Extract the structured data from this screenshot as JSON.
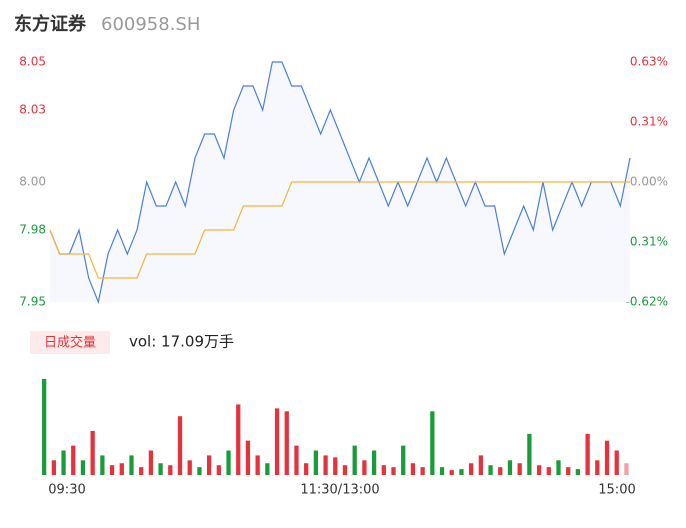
{
  "chart_data": {
    "type": "intraday",
    "title": "东方证券",
    "subtitle": "600958.SH",
    "ylim": [
      7.95,
      8.05
    ],
    "yticks": [
      8.05,
      8.03,
      {
        "value": 8.0,
        "label": "8.00"
      },
      7.98,
      7.95
    ],
    "ytick_colors": [
      "#e5333d",
      "#e5333d",
      "#999999",
      "#1a9c3a",
      "#1a9c3a"
    ],
    "y2lim": [
      -0.625,
      0.625
    ],
    "y2ticks": [
      {
        "value": 0.625,
        "label": "0.63%"
      },
      {
        "value": 0.3125,
        "label": "0.31%"
      },
      {
        "value": 0,
        "label": "0.00%"
      },
      {
        "value": -0.3125,
        "label": "-0.31%"
      },
      {
        "value": -0.625,
        "label": "-0.62%"
      }
    ],
    "y2tick_colors": [
      "#e5333d",
      "#e5333d",
      "#999999",
      "#1a9c3a",
      "#1a9c3a"
    ],
    "x_labels": [
      "09:30",
      "11:30/13:00",
      "15:00"
    ],
    "series": [
      {
        "color": "#4a7fe0",
        "values": [
          7.98,
          7.97,
          7.97,
          7.98,
          7.96,
          7.95,
          7.97,
          7.98,
          7.97,
          7.98,
          8.0,
          7.99,
          7.99,
          8.0,
          7.99,
          8.01,
          8.02,
          8.02,
          8.01,
          8.03,
          8.04,
          8.04,
          8.03,
          8.05,
          8.05,
          8.04,
          8.04,
          8.03,
          8.02,
          8.03,
          8.02,
          8.01,
          8.0,
          8.01,
          8.0,
          7.99,
          8.0,
          7.99,
          8.0,
          8.01,
          8.0,
          8.01,
          8.0,
          7.99,
          8.0,
          7.99,
          7.99,
          7.97,
          7.98,
          7.99,
          7.98,
          8.0,
          7.98,
          7.99,
          8.0,
          7.99,
          8.0,
          8.0,
          8.0,
          7.99,
          8.01
        ]
      },
      {
        "color": "#f5b43c",
        "values": [
          7.98,
          7.97,
          7.97,
          7.97,
          7.97,
          7.96,
          7.96,
          7.96,
          7.96,
          7.96,
          7.97,
          7.97,
          7.97,
          7.97,
          7.97,
          7.97,
          7.98,
          7.98,
          7.98,
          7.98,
          7.99,
          7.99,
          7.99,
          7.99,
          7.99,
          8.0,
          8.0,
          8.0,
          8.0,
          8.0,
          8.0,
          8.0,
          8.0,
          8.0,
          8.0,
          8.0,
          8.0,
          8.0,
          8.0,
          8.0,
          8.0,
          8.0,
          8.0,
          8.0,
          8.0,
          8.0,
          8.0,
          8.0,
          8.0,
          8.0,
          8.0,
          8.0,
          8.0,
          8.0,
          8.0,
          8.0,
          8.0,
          8.0,
          8.0,
          8.0,
          8.0
        ]
      }
    ],
    "volume": {
      "badge": "日成交量",
      "summary": "vol: 17.09万手",
      "ylim": [
        0,
        100
      ],
      "values": [
        98,
        15,
        25,
        30,
        15,
        45,
        20,
        10,
        12,
        20,
        8,
        25,
        12,
        10,
        60,
        15,
        8,
        20,
        10,
        25,
        72,
        35,
        20,
        12,
        68,
        65,
        30,
        12,
        25,
        20,
        18,
        10,
        30,
        15,
        25,
        10,
        8,
        30,
        12,
        8,
        65,
        8,
        5,
        6,
        12,
        20,
        10,
        8,
        15,
        12,
        42,
        10,
        8,
        15,
        8,
        6,
        42,
        15,
        35,
        25,
        12
      ],
      "colors": [
        "#1a9c3a",
        "#e5333d",
        "#1a9c3a",
        "#e5333d",
        "#1a9c3a",
        "#e5333d",
        "#1a9c3a",
        "#e5333d",
        "#e5333d",
        "#1a9c3a",
        "#e5333d",
        "#e5333d",
        "#1a9c3a",
        "#e5333d",
        "#e5333d",
        "#e5333d",
        "#1a9c3a",
        "#e5333d",
        "#e5333d",
        "#1a9c3a",
        "#e5333d",
        "#e5333d",
        "#e5333d",
        "#1a9c3a",
        "#e5333d",
        "#e5333d",
        "#e5333d",
        "#e5333d",
        "#1a9c3a",
        "#e5333d",
        "#e5333d",
        "#e5333d",
        "#1a9c3a",
        "#e5333d",
        "#1a9c3a",
        "#e5333d",
        "#e5333d",
        "#1a9c3a",
        "#e5333d",
        "#e5333d",
        "#1a9c3a",
        "#1a9c3a",
        "#e5333d",
        "#1a9c3a",
        "#e5333d",
        "#e5333d",
        "#1a9c3a",
        "#e5333d",
        "#1a9c3a",
        "#e5333d",
        "#1a9c3a",
        "#e5333d",
        "#e5333d",
        "#1a9c3a",
        "#e5333d",
        "#1a9c3a",
        "#e5333d",
        "#e5333d",
        "#e5333d",
        "#e5333d",
        "#f4a0a0"
      ]
    }
  }
}
